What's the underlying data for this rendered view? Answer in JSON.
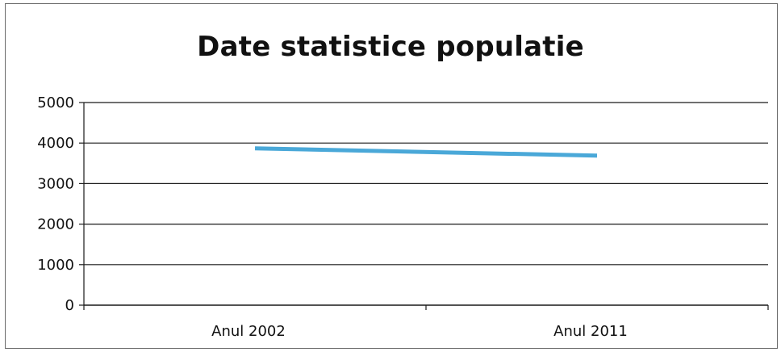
{
  "chart_data": {
    "type": "line",
    "title": "Date statistice populatie",
    "categories": [
      "Anul 2002",
      "Anul 2011"
    ],
    "series": [
      {
        "values": [
          3870,
          3690
        ],
        "color": "#4aa8d8"
      }
    ],
    "ylim": [
      0,
      5000
    ],
    "yticks": [
      "0",
      "1000",
      "2000",
      "3000",
      "4000",
      "5000"
    ],
    "grid": true,
    "legend": "none",
    "xlabel": "",
    "ylabel": ""
  }
}
